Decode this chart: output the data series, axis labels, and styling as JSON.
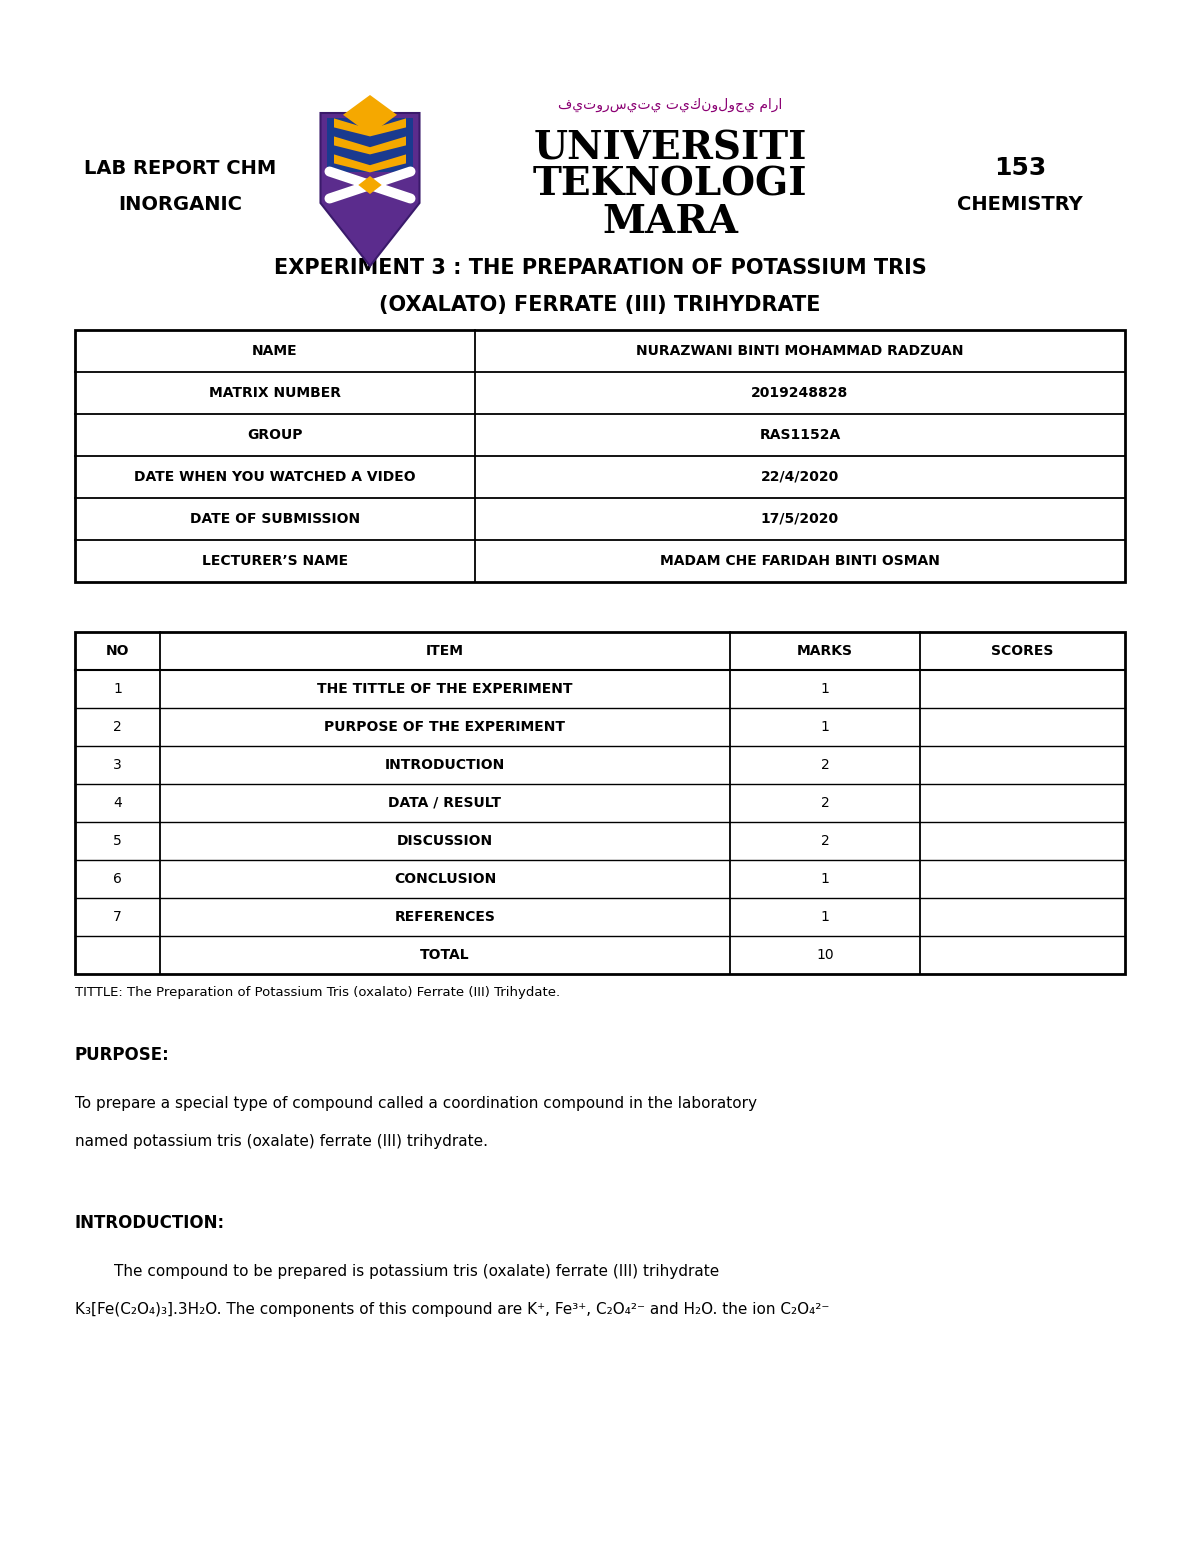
{
  "bg_color": "#ffffff",
  "page_width": 12.0,
  "page_height": 15.53,
  "dpi": 100,
  "header": {
    "left_text1": "LAB REPORT CHM",
    "left_text2": "INORGANIC",
    "right_text1": "153",
    "right_text2": "CHEMISTRY",
    "univ_line1": "UNIVERSITI",
    "univ_line2": "TEKNOLOGI",
    "univ_line3": "MARA",
    "arabic_text": "فيتورسيتي تيكنولوجي مارا"
  },
  "title_line1": "EXPERIMENT 3 : THE PREPARATION OF POTASSIUM TRIS",
  "title_line2": "(OXALATO) FERRATE (III) TRIHYDRATE",
  "info_table": {
    "rows": [
      [
        "NAME",
        "NURAZWANI BINTI MOHAMMAD RADZUAN"
      ],
      [
        "MATRIX NUMBER",
        "2019248828"
      ],
      [
        "GROUP",
        "RAS1152A"
      ],
      [
        "DATE WHEN YOU WATCHED A VIDEO",
        "22/4/2020"
      ],
      [
        "DATE OF SUBMISSION",
        "17/5/2020"
      ],
      [
        "LECTURER’S NAME",
        "MADAM CHE FARIDAH BINTI OSMAN"
      ]
    ]
  },
  "marks_table": {
    "headers": [
      "NO",
      "ITEM",
      "MARKS",
      "SCORES"
    ],
    "rows": [
      [
        "1",
        "THE TITTLE OF THE EXPERIMENT",
        "1",
        ""
      ],
      [
        "2",
        "PURPOSE OF THE EXPERIMENT",
        "1",
        ""
      ],
      [
        "3",
        "INTRODUCTION",
        "2",
        ""
      ],
      [
        "4",
        "DATA / RESULT",
        "2",
        ""
      ],
      [
        "5",
        "DISCUSSION",
        "2",
        ""
      ],
      [
        "6",
        "CONCLUSION",
        "1",
        ""
      ],
      [
        "7",
        "REFERENCES",
        "1",
        ""
      ],
      [
        "",
        "TOTAL",
        "10",
        ""
      ]
    ]
  },
  "tittle_note": "TITTLE: The Preparation of Potassium Tris (oxalato) Ferrate (III) Trihydate.",
  "purpose_heading": "PURPOSE:",
  "purpose_line1": "To prepare a special type of compound called a coordination compound in the laboratory",
  "purpose_line2": "named potassium tris (oxalate) ferrate (III) trihydrate.",
  "intro_heading": "INTRODUCTION:",
  "intro_text1": "        The compound to be prepared is potassium tris (oxalate) ferrate (III) trihydrate",
  "intro_text2": "K₃[Fe(C₂O₄)₃].3H₂O. The components of this compound are K⁺, Fe³⁺, C₂O₄²⁻ and H₂O. the ion C₂O₄²⁻"
}
